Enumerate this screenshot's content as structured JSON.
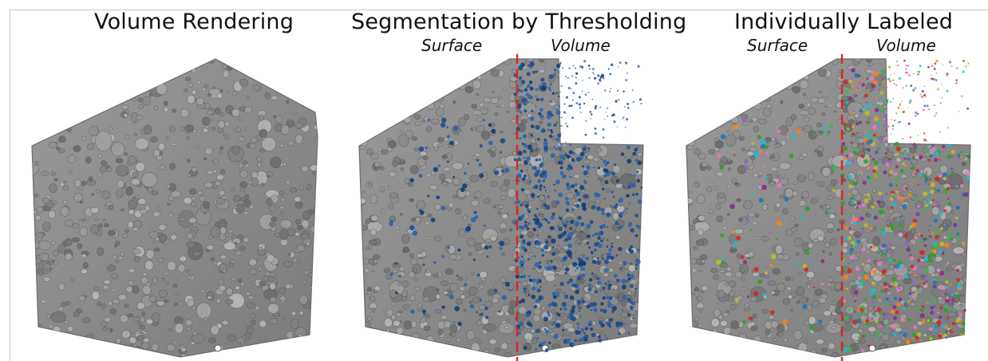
{
  "panels": [
    {
      "title": "Volume Rendering"
    },
    {
      "title": "Segmentation by Thresholding",
      "left_label": "Surface",
      "right_label": "Volume"
    },
    {
      "title": "Individually Labeled",
      "left_label": "Surface",
      "right_label": "Volume"
    }
  ],
  "colors": {
    "rock": "#8a8a8a",
    "threshold_particles": "#1f4e8c",
    "divider": "#d62728",
    "label_palette": [
      "#d62728",
      "#2ca02c",
      "#1f77b4",
      "#9467bd",
      "#e377c2",
      "#17becf",
      "#bcbd22",
      "#ff7f0e",
      "#8c2d8c",
      "#3cb44b"
    ]
  }
}
